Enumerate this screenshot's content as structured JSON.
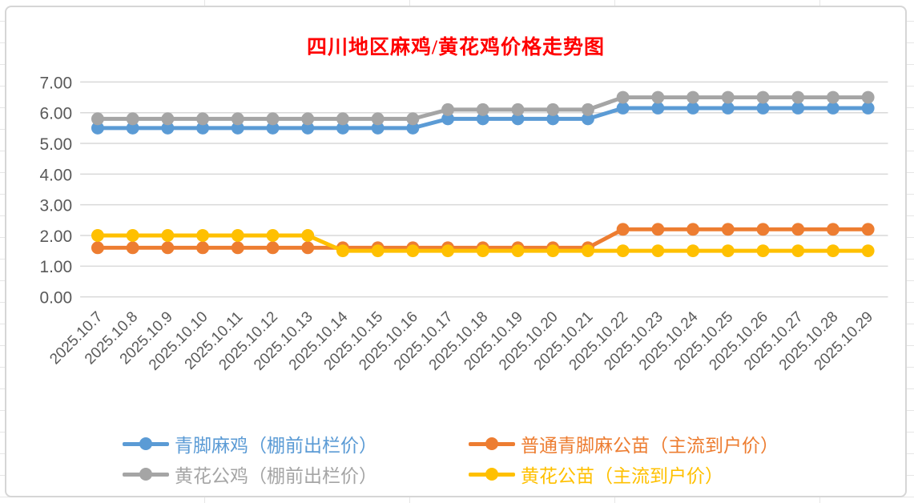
{
  "title": {
    "text": "四川地区麻鸡/黄花鸡价格走势图",
    "color": "#FF0000"
  },
  "axis": {
    "label_color": "#595959",
    "grid_color": "#D9D9D9",
    "ytick_labels": [
      "0.00",
      "1.00",
      "2.00",
      "3.00",
      "4.00",
      "5.00",
      "6.00",
      "7.00"
    ]
  },
  "chart_data": {
    "type": "line",
    "title": "四川地区麻鸡/黄花鸡价格走势图",
    "xlabel": "",
    "ylabel": "",
    "ylim": [
      0,
      7
    ],
    "ytick_step": 1,
    "grid": true,
    "legend_position": "bottom",
    "categories": [
      "2025.10.7",
      "2025.10.8",
      "2025.10.9",
      "2025.10.10",
      "2025.10.11",
      "2025.10.12",
      "2025.10.13",
      "2025.10.14",
      "2025.10.15",
      "2025.10.16",
      "2025.10.17",
      "2025.10.18",
      "2025.10.19",
      "2025.10.20",
      "2025.10.21",
      "2025.10.22",
      "2025.10.23",
      "2025.10.24",
      "2025.10.25",
      "2025.10.26",
      "2025.10.27",
      "2025.10.28",
      "2025.10.29"
    ],
    "series": [
      {
        "name": "青脚麻鸡（棚前出栏价）",
        "color": "#5B9BD5",
        "values": [
          5.5,
          5.5,
          5.5,
          5.5,
          5.5,
          5.5,
          5.5,
          5.5,
          5.5,
          5.5,
          5.8,
          5.8,
          5.8,
          5.8,
          5.8,
          6.15,
          6.15,
          6.15,
          6.15,
          6.15,
          6.15,
          6.15,
          6.15
        ]
      },
      {
        "name": "普通青脚麻公苗（主流到户价）",
        "color": "#ED7D31",
        "values": [
          1.6,
          1.6,
          1.6,
          1.6,
          1.6,
          1.6,
          1.6,
          1.6,
          1.6,
          1.6,
          1.6,
          1.6,
          1.6,
          1.6,
          1.6,
          2.2,
          2.2,
          2.2,
          2.2,
          2.2,
          2.2,
          2.2,
          2.2
        ]
      },
      {
        "name": "黄花公鸡（棚前出栏价）",
        "color": "#A5A5A5",
        "values": [
          5.8,
          5.8,
          5.8,
          5.8,
          5.8,
          5.8,
          5.8,
          5.8,
          5.8,
          5.8,
          6.1,
          6.1,
          6.1,
          6.1,
          6.1,
          6.5,
          6.5,
          6.5,
          6.5,
          6.5,
          6.5,
          6.5,
          6.5
        ]
      },
      {
        "name": "黄花公苗（主流到户价）",
        "color": "#FFC000",
        "values": [
          2.0,
          2.0,
          2.0,
          2.0,
          2.0,
          2.0,
          2.0,
          1.5,
          1.5,
          1.5,
          1.5,
          1.5,
          1.5,
          1.5,
          1.5,
          1.5,
          1.5,
          1.5,
          1.5,
          1.5,
          1.5,
          1.5,
          1.5
        ]
      }
    ]
  }
}
